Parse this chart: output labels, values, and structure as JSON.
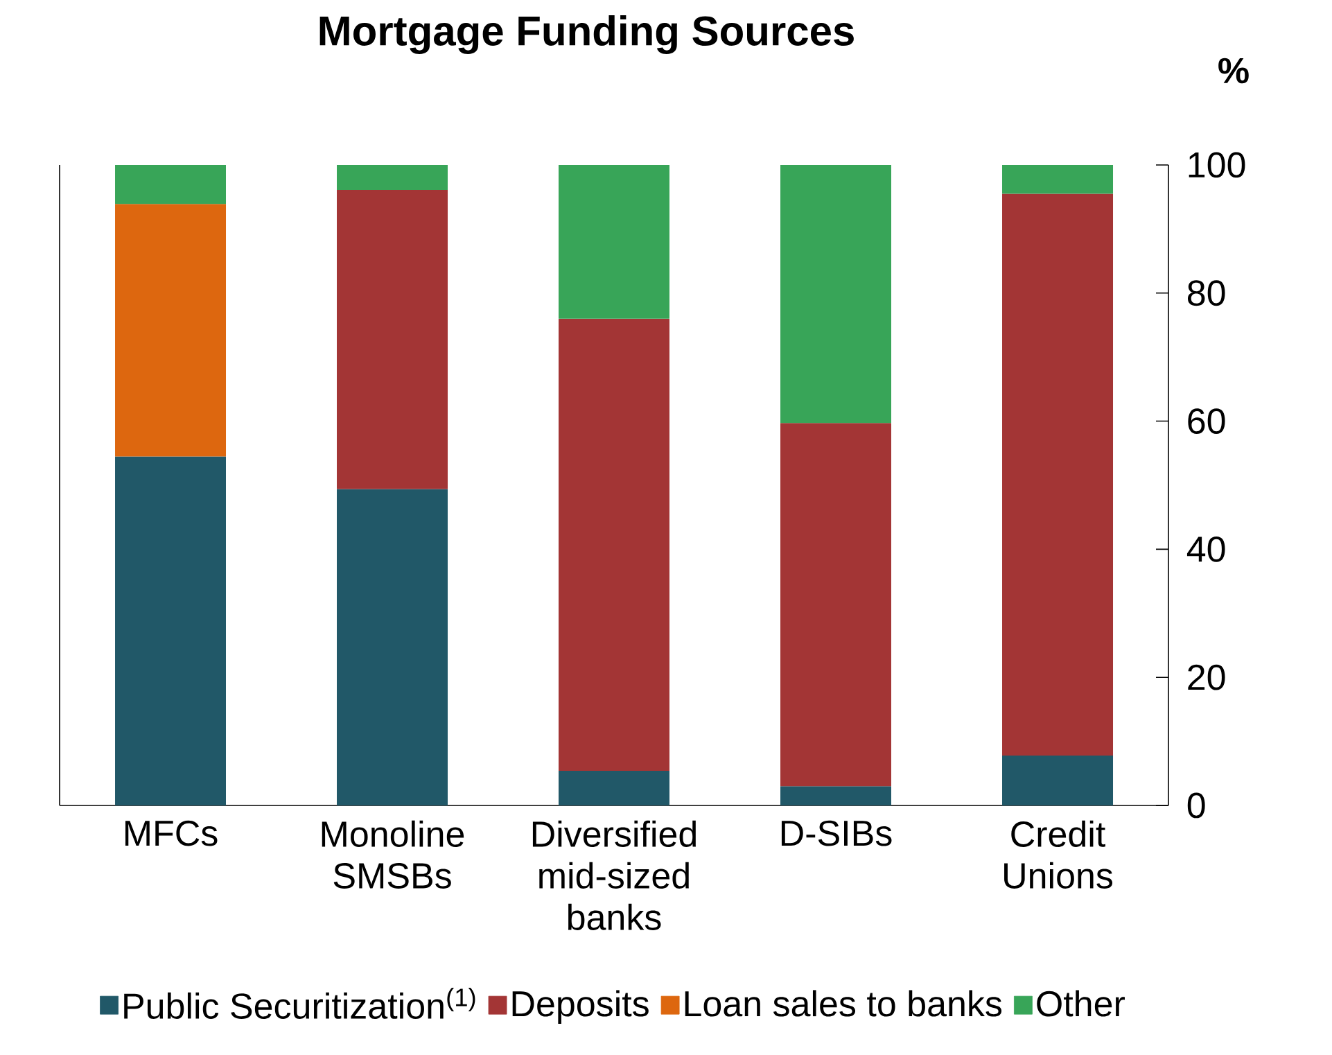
{
  "chart_data": {
    "type": "bar",
    "title": "Mortgage Funding Sources",
    "ylabel": "%",
    "categories": [
      "MFCs",
      "Monoline SMSBs",
      "Diversified mid-sized banks",
      "D-SIBs",
      "Credit Unions"
    ],
    "stacked": true,
    "series": [
      {
        "name": "Public Securitization$^{(1)}$",
        "color": "#215868",
        "values": [
          54.5,
          49.4,
          5.4,
          3.0,
          7.8
        ]
      },
      {
        "name": "Deposits",
        "color": "#a33535",
        "values": [
          null,
          46.7,
          70.6,
          56.7,
          87.7
        ]
      },
      {
        "name": "Loan sales to banks",
        "color": "#dd670f",
        "values": [
          39.4,
          null,
          null,
          null,
          null
        ]
      },
      {
        "name": "Other",
        "color": "#38a558",
        "values": [
          6.1,
          3.9,
          24.0,
          40.3,
          4.5
        ]
      }
    ],
    "ylim": [
      0,
      100
    ],
    "yticks": [
      0,
      20,
      40,
      60,
      80,
      100
    ],
    "grid": false,
    "legend": "bottom"
  }
}
